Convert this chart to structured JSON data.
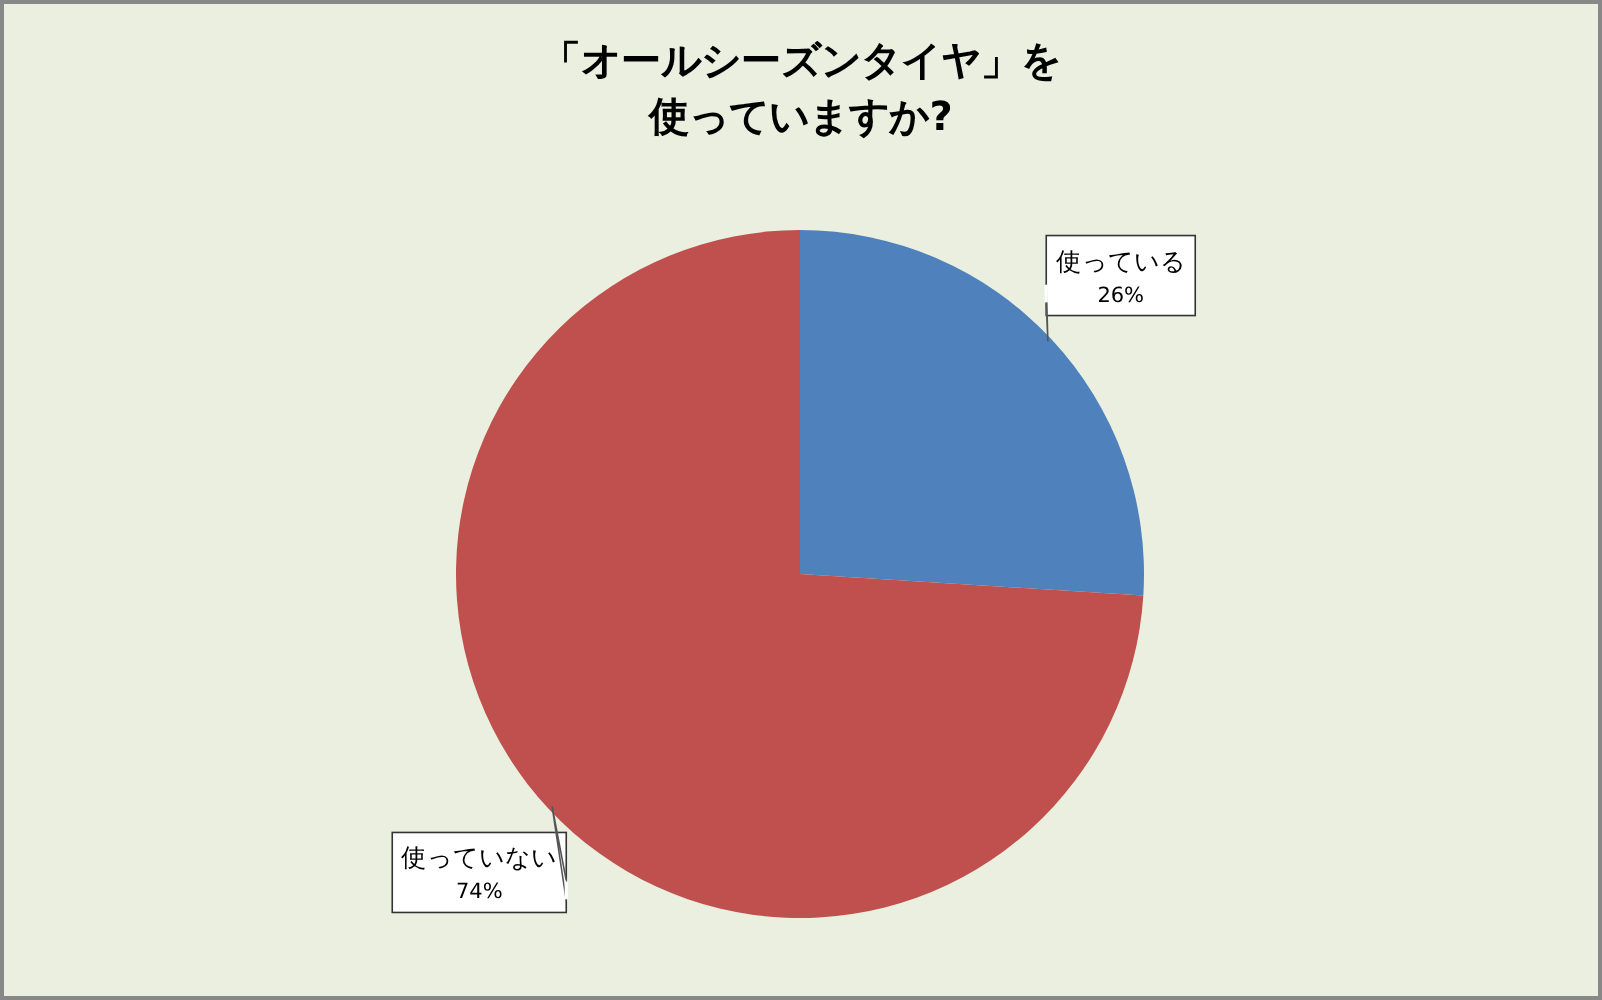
{
  "chart_data": {
    "type": "pie",
    "title": "「オールシーズンタイヤ」を使っていますか?",
    "categories": [
      "使っている",
      "使っていない"
    ],
    "values": [
      26,
      74
    ],
    "colors": [
      "#4f81bd",
      "#c0504d"
    ],
    "value_labels": [
      "26%",
      "74%"
    ],
    "legend": false
  }
}
